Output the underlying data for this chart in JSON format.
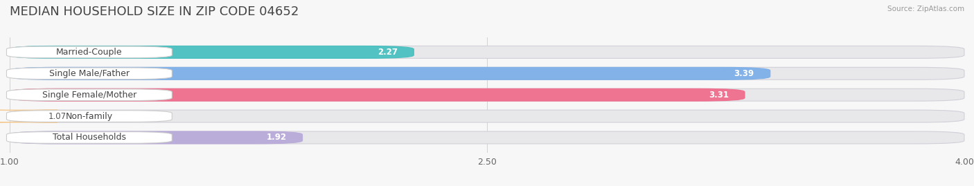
{
  "title": "MEDIAN HOUSEHOLD SIZE IN ZIP CODE 04652",
  "source": "Source: ZipAtlas.com",
  "categories": [
    "Married-Couple",
    "Single Male/Father",
    "Single Female/Mother",
    "Non-family",
    "Total Households"
  ],
  "values": [
    2.27,
    3.39,
    3.31,
    1.07,
    1.92
  ],
  "bar_colors": [
    "#45BFBF",
    "#7BAEE8",
    "#F06A8A",
    "#F5C990",
    "#B8A8D8"
  ],
  "xlim": [
    1.0,
    4.0
  ],
  "xticks": [
    1.0,
    2.5,
    4.0
  ],
  "background_color": "#f7f7f7",
  "bar_background_color": "#e8e8eb",
  "title_fontsize": 13,
  "label_fontsize": 9,
  "value_fontsize": 8.5,
  "tick_fontsize": 9,
  "bar_height": 0.58,
  "bar_gap": 0.12
}
